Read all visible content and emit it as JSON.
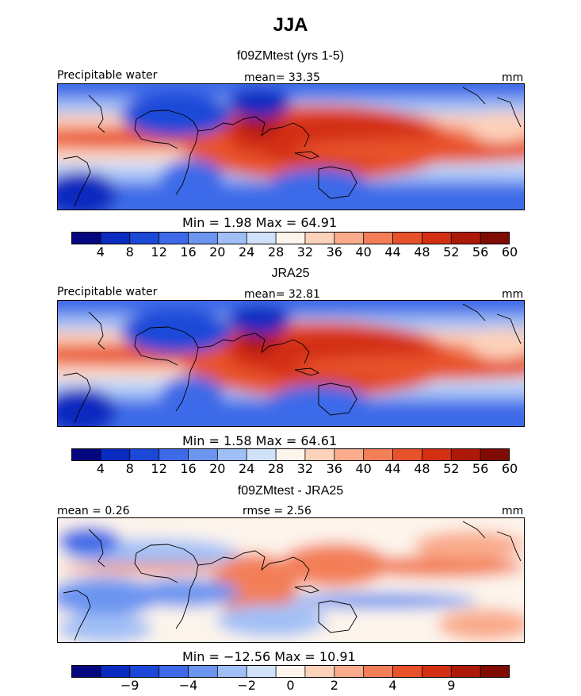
{
  "figure": {
    "season": "JJA",
    "panels": [
      {
        "title": "f09ZMtest (yrs 1-5)",
        "variable": "Precipitable water",
        "stat_text": "mean=  33.35",
        "units": "mm",
        "minmax_text": "Min =    1.98  Max =   64.91",
        "colorbar_ticks": [
          "4",
          "8",
          "12",
          "16",
          "20",
          "24",
          "28",
          "32",
          "36",
          "40",
          "44",
          "48",
          "52",
          "56",
          "60"
        ]
      },
      {
        "title": "JRA25",
        "variable": "Precipitable water",
        "stat_text": "mean=  32.81",
        "units": "mm",
        "minmax_text": "Min =    1.58  Max =   64.61",
        "colorbar_ticks": [
          "4",
          "8",
          "12",
          "16",
          "20",
          "24",
          "28",
          "32",
          "36",
          "40",
          "44",
          "48",
          "52",
          "56",
          "60"
        ]
      },
      {
        "title": "f09ZMtest - JRA25",
        "mean_text": "mean =    0.26",
        "rmse_text": "rmse =    2.56",
        "units": "mm",
        "minmax_text": "Min = −12.56  Max =   10.91",
        "colorbar_ticks": [
          "−9",
          "−4",
          "−2",
          "0",
          "2",
          "4",
          "9"
        ]
      }
    ]
  },
  "chart_data": [
    {
      "type": "heatmap",
      "title": "f09ZMtest (yrs 1-5)",
      "variable": "Precipitable water",
      "units": "mm",
      "mean": 33.35,
      "min": 1.98,
      "max": 64.91,
      "levels": [
        4,
        8,
        12,
        16,
        20,
        24,
        28,
        32,
        36,
        40,
        44,
        48,
        52,
        56,
        60
      ],
      "colors": [
        "#05077e",
        "#0a2bc0",
        "#1c48d8",
        "#3e6ae8",
        "#6c95f0",
        "#a0bff6",
        "#d0e1fa",
        "#fdf4ec",
        "#fdd2bb",
        "#f9ab8b",
        "#f37f59",
        "#e8522b",
        "#d32f12",
        "#ad1909",
        "#800b03"
      ]
    },
    {
      "type": "heatmap",
      "title": "JRA25",
      "variable": "Precipitable water",
      "units": "mm",
      "mean": 32.81,
      "min": 1.58,
      "max": 64.61,
      "levels": [
        4,
        8,
        12,
        16,
        20,
        24,
        28,
        32,
        36,
        40,
        44,
        48,
        52,
        56,
        60
      ],
      "colors": [
        "#05077e",
        "#0a2bc0",
        "#1c48d8",
        "#3e6ae8",
        "#6c95f0",
        "#a0bff6",
        "#d0e1fa",
        "#fdf4ec",
        "#fdd2bb",
        "#f9ab8b",
        "#f37f59",
        "#e8522b",
        "#d32f12",
        "#ad1909",
        "#800b03"
      ]
    },
    {
      "type": "heatmap",
      "title": "f09ZMtest - JRA25",
      "units": "mm",
      "mean": 0.26,
      "rmse": 2.56,
      "min": -12.56,
      "max": 10.91,
      "levels": [
        -9,
        -4,
        -2,
        0,
        2,
        4,
        9
      ],
      "colors": [
        "#05077e",
        "#0a2bc0",
        "#1c48d8",
        "#3e6ae8",
        "#6c95f0",
        "#a0bff6",
        "#d0e1fa",
        "#fdf4ec",
        "#fdd2bb",
        "#f9ab8b",
        "#f37f59",
        "#e8522b",
        "#d32f12",
        "#ad1909",
        "#800b03"
      ]
    }
  ]
}
